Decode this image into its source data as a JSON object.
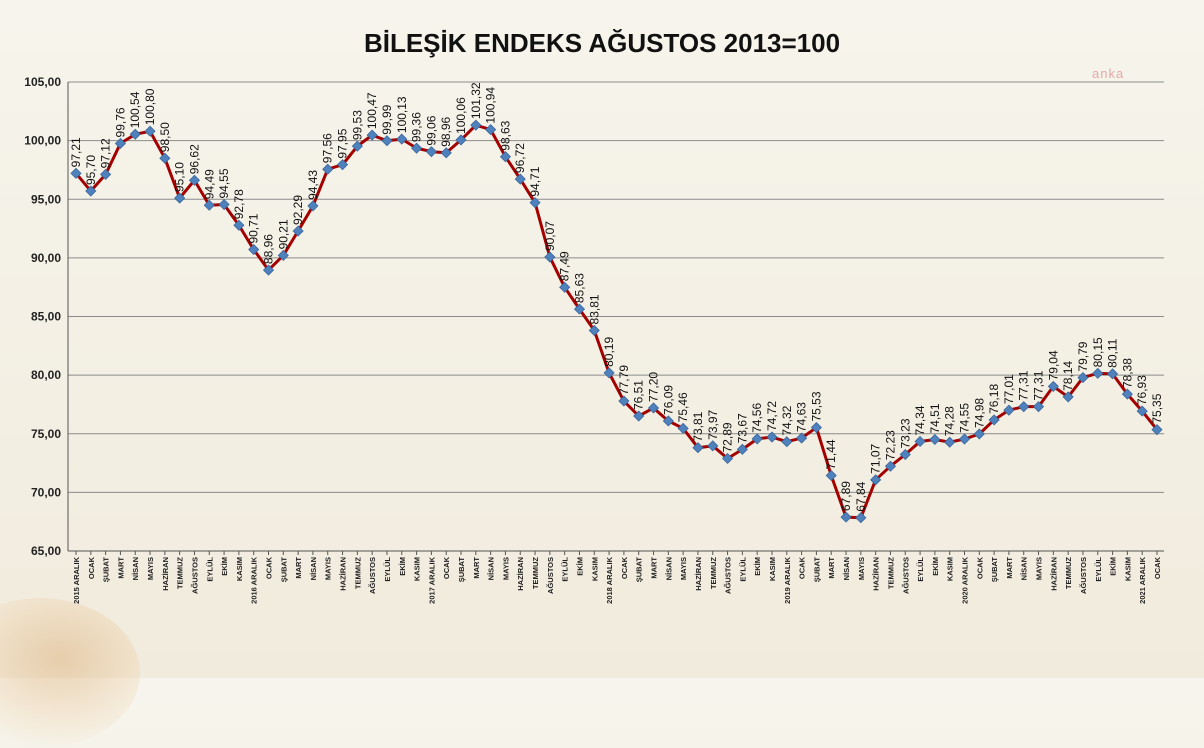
{
  "title": "BİLEŞİK ENDEKS AĞUSTOS 2013=100",
  "watermark": "anka",
  "chart_data": {
    "type": "line",
    "title": "BİLEŞİK ENDEKS AĞUSTOS 2013=100",
    "xlabel": "",
    "ylabel": "",
    "ylim": [
      65,
      105
    ],
    "y_ticks": [
      "65,00",
      "70,00",
      "75,00",
      "80,00",
      "85,00",
      "90,00",
      "95,00",
      "100,00",
      "105,00"
    ],
    "grid": true,
    "legend": "none",
    "colors": {
      "line": "#a40000",
      "marker": "#4f81bd",
      "grid": "#8c8c8c"
    },
    "categories": [
      "2015 ARALIK",
      "OCAK",
      "ŞUBAT",
      "MART",
      "NİSAN",
      "MAYIS",
      "HAZİRAN",
      "TEMMUZ",
      "AĞUSTOS",
      "EYLÜL",
      "EKİM",
      "KASIM",
      "2016 ARALIK",
      "OCAK",
      "ŞUBAT",
      "MART",
      "NİSAN",
      "MAYIS",
      "HAZİRAN",
      "TEMMUZ",
      "AĞUSTOS",
      "EYLÜL",
      "EKİM",
      "KASIM",
      "2017 ARALIK",
      "OCAK",
      "ŞUBAT",
      "MART",
      "NİSAN",
      "MAYIS",
      "HAZİRAN",
      "TEMMUZ",
      "AĞUSTOS",
      "EYLÜL",
      "EKİM",
      "KASIM",
      "2018 ARALIK",
      "OCAK",
      "ŞUBAT",
      "MART",
      "NİSAN",
      "MAYIS",
      "HAZİRAN",
      "TEMMUZ",
      "AĞUSTOS",
      "EYLÜL",
      "EKİM",
      "KASIM",
      "2019 ARALIK",
      "OCAK",
      "ŞUBAT",
      "MART",
      "NİSAN",
      "MAYIS",
      "HAZİRAN",
      "TEMMUZ",
      "AĞUSTOS",
      "EYLÜL",
      "EKİM",
      "KASIM",
      "2020 ARALIK",
      "OCAK",
      "ŞUBAT",
      "MART",
      "NİSAN",
      "MAYIS",
      "HAZİRAN",
      "TEMMUZ",
      "AĞUSTOS",
      "EYLÜL",
      "EKİM",
      "KASIM",
      "2021 ARALIK",
      "OCAK"
    ],
    "values": [
      97.21,
      95.7,
      97.12,
      99.76,
      100.54,
      100.8,
      98.5,
      95.1,
      96.62,
      94.49,
      94.55,
      92.78,
      90.71,
      88.96,
      90.21,
      92.29,
      94.43,
      97.56,
      97.95,
      99.53,
      100.47,
      99.99,
      100.13,
      99.36,
      99.06,
      98.96,
      100.06,
      101.32,
      100.94,
      98.63,
      96.72,
      94.71,
      90.07,
      87.49,
      85.63,
      83.81,
      80.19,
      77.79,
      76.51,
      77.2,
      76.09,
      75.46,
      73.81,
      73.97,
      72.89,
      73.67,
      74.56,
      74.72,
      74.32,
      74.63,
      75.53,
      71.44,
      67.89,
      67.84,
      71.07,
      72.23,
      73.23,
      74.34,
      74.51,
      74.28,
      74.55,
      74.98,
      76.18,
      77.01,
      77.31,
      77.31,
      79.04,
      78.14,
      79.79,
      80.15,
      80.11,
      78.38,
      76.93,
      75.35
    ],
    "data_labels": [
      "97,21",
      "95,70",
      "97,12",
      "99,76",
      "100,54",
      "100,80",
      "98,50",
      "95,10",
      "96,62",
      "94,49",
      "94,55",
      "92,78",
      "90,71",
      "88,96",
      "90,21",
      "92,29",
      "94,43",
      "97,56",
      "97,95",
      "99,53",
      "100,47",
      "99,99",
      "100,13",
      "99,36",
      "99,06",
      "98,96",
      "100,06",
      "101,32",
      "100,94",
      "98,63",
      "96,72",
      "94,71",
      "90,07",
      "87,49",
      "85,63",
      "83,81",
      "80,19",
      "77,79",
      "76,51",
      "77,20",
      "76,09",
      "75,46",
      "73,81",
      "73,97",
      "72,89",
      "73,67",
      "74,56",
      "74,72",
      "74,32",
      "74,63",
      "75,53",
      "71,44",
      "67,89",
      "67,84",
      "71,07",
      "72,23",
      "73,23",
      "74,34",
      "74,51",
      "74,28",
      "74,55",
      "74,98",
      "76,18",
      "77,01",
      "77,31",
      "77,31",
      "79,04",
      "78,14",
      "79,79",
      "80,15",
      "80,11",
      "78,38",
      "76,93",
      "75,35"
    ]
  }
}
